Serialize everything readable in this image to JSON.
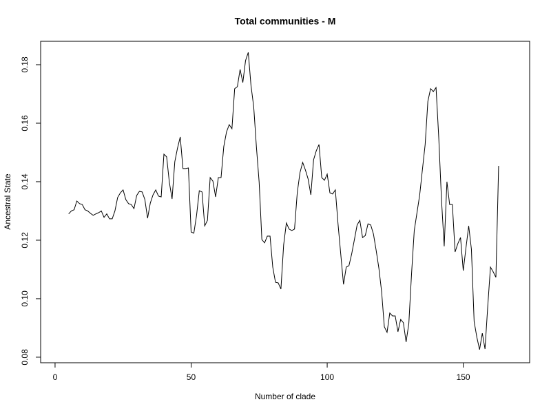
{
  "chart_data": {
    "type": "line",
    "title": "Total communities - M",
    "xlabel": "Number of clade",
    "ylabel": "Ancestral State",
    "x": [
      5,
      6,
      7,
      8,
      9,
      10,
      11,
      12,
      13,
      14,
      15,
      16,
      17,
      18,
      19,
      20,
      21,
      22,
      23,
      24,
      25,
      26,
      27,
      28,
      29,
      30,
      31,
      32,
      33,
      34,
      35,
      36,
      37,
      38,
      39,
      40,
      41,
      42,
      43,
      44,
      45,
      46,
      47,
      48,
      49,
      50,
      51,
      52,
      53,
      54,
      55,
      56,
      57,
      58,
      59,
      60,
      61,
      62,
      63,
      64,
      65,
      66,
      67,
      68,
      69,
      70,
      71,
      72,
      73,
      74,
      75,
      76,
      77,
      78,
      79,
      80,
      81,
      82,
      83,
      84,
      85,
      86,
      87,
      88,
      89,
      90,
      91,
      92,
      93,
      94,
      95,
      96,
      97,
      98,
      99,
      100,
      101,
      102,
      103,
      104,
      105,
      106,
      107,
      108,
      109,
      110,
      111,
      112,
      113,
      114,
      115,
      116,
      117,
      118,
      119,
      120,
      121,
      122,
      123,
      124,
      125,
      126,
      127,
      128,
      129,
      130,
      131,
      132,
      133,
      134,
      135,
      136,
      137,
      138,
      139,
      140,
      141,
      142,
      143,
      144,
      145,
      146,
      147,
      148,
      149,
      150,
      151,
      152,
      153,
      154,
      155,
      156,
      157,
      158,
      159,
      160,
      161,
      162,
      163
    ],
    "series": [
      {
        "name": "Total communities - M",
        "color": "#000000",
        "values": [
          0.129,
          0.13,
          0.1304,
          0.1334,
          0.1325,
          0.1322,
          0.1304,
          0.13,
          0.1292,
          0.1285,
          0.129,
          0.1294,
          0.13,
          0.1278,
          0.129,
          0.1273,
          0.1273,
          0.13,
          0.1346,
          0.1362,
          0.1372,
          0.1339,
          0.1325,
          0.1322,
          0.1308,
          0.1353,
          0.1367,
          0.1365,
          0.1339,
          0.1275,
          0.1327,
          0.1355,
          0.1372,
          0.1351,
          0.1348,
          0.1494,
          0.1485,
          0.1398,
          0.1341,
          0.1468,
          0.1515,
          0.1553,
          0.1445,
          0.1445,
          0.1447,
          0.1228,
          0.1224,
          0.1285,
          0.1369,
          0.1365,
          0.1249,
          0.1268,
          0.1414,
          0.1402,
          0.1348,
          0.1414,
          0.1414,
          0.152,
          0.157,
          0.1595,
          0.1581,
          0.1718,
          0.1725,
          0.1784,
          0.1739,
          0.1814,
          0.1842,
          0.1729,
          0.1656,
          0.1518,
          0.1398,
          0.1202,
          0.1191,
          0.1214,
          0.1214,
          0.1108,
          0.1056,
          0.1054,
          0.1033,
          0.1184,
          0.1259,
          0.1238,
          0.1233,
          0.1238,
          0.1362,
          0.1431,
          0.1466,
          0.144,
          0.1409,
          0.1355,
          0.1475,
          0.1506,
          0.1527,
          0.1414,
          0.1405,
          0.1426,
          0.1362,
          0.1358,
          0.1372,
          0.1254,
          0.1151,
          0.1049,
          0.1108,
          0.1113,
          0.1153,
          0.1202,
          0.1252,
          0.1268,
          0.1209,
          0.1216,
          0.1256,
          0.1252,
          0.1221,
          0.1165,
          0.1104,
          0.1024,
          0.0904,
          0.0885,
          0.0951,
          0.0941,
          0.0941,
          0.0887,
          0.0929,
          0.0918,
          0.0852,
          0.0915,
          0.1085,
          0.1233,
          0.1294,
          0.1355,
          0.1442,
          0.1527,
          0.1675,
          0.1718,
          0.1708,
          0.1722,
          0.1551,
          0.1339,
          0.1179,
          0.14,
          0.1322,
          0.1322,
          0.116,
          0.1188,
          0.1209,
          0.1096,
          0.1174,
          0.1249,
          0.1169,
          0.0922,
          0.0868,
          0.0826,
          0.0882,
          0.0828,
          0.0974,
          0.1108,
          0.1092,
          0.1073,
          0.1454
        ]
      }
    ],
    "xlim": [
      -5.3,
      174.4
    ],
    "xticks": [
      0,
      50,
      100,
      150
    ],
    "ylim": [
      0.0781,
      0.188
    ],
    "yticks": [
      0.08,
      {
        "value": 0.1,
        "label": "0.10"
      },
      0.12,
      0.14,
      0.16,
      0.18
    ]
  }
}
